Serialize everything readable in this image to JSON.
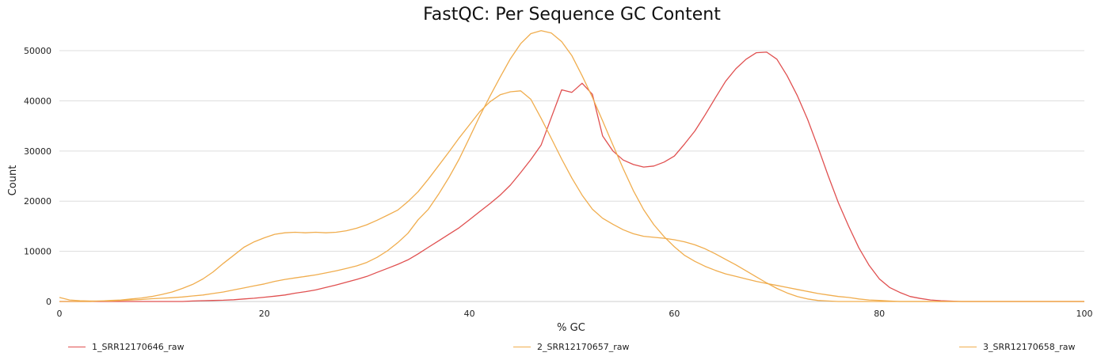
{
  "chart_data": {
    "type": "line",
    "title": "FastQC: Per Sequence GC Content",
    "xlabel": "% GC",
    "ylabel": "Count",
    "xlim": [
      0,
      100
    ],
    "ylim": [
      0,
      56000
    ],
    "x_ticks": [
      "0",
      "20",
      "40",
      "60",
      "80",
      "100"
    ],
    "y_ticks": [
      "0",
      "10000",
      "20000",
      "30000",
      "40000",
      "50000"
    ],
    "grid": "horizontal",
    "legend_position": "bottom",
    "x": [
      0,
      1,
      2,
      3,
      4,
      5,
      6,
      7,
      8,
      9,
      10,
      11,
      12,
      13,
      14,
      15,
      16,
      17,
      18,
      19,
      20,
      21,
      22,
      23,
      24,
      25,
      26,
      27,
      28,
      29,
      30,
      31,
      32,
      33,
      34,
      35,
      36,
      37,
      38,
      39,
      40,
      41,
      42,
      43,
      44,
      45,
      46,
      47,
      48,
      49,
      50,
      51,
      52,
      53,
      54,
      55,
      56,
      57,
      58,
      59,
      60,
      61,
      62,
      63,
      64,
      65,
      66,
      67,
      68,
      69,
      70,
      71,
      72,
      73,
      74,
      75,
      76,
      77,
      78,
      79,
      80,
      81,
      82,
      83,
      84,
      85,
      86,
      87,
      88,
      89,
      90,
      91,
      92,
      93,
      94,
      95,
      96,
      97,
      98,
      99,
      100
    ],
    "series": [
      {
        "name": "1_SRR12170646_raw",
        "color": "#e05050",
        "values": [
          0,
          0,
          0,
          0,
          0,
          0,
          0,
          0,
          0,
          0,
          0,
          0,
          0,
          100,
          150,
          200,
          250,
          350,
          500,
          650,
          850,
          1050,
          1300,
          1650,
          1950,
          2300,
          2800,
          3300,
          3850,
          4400,
          5000,
          5800,
          6600,
          7400,
          8300,
          9500,
          10800,
          12100,
          13400,
          14700,
          16300,
          17900,
          19500,
          21200,
          23200,
          25700,
          28300,
          31200,
          36700,
          42200,
          41700,
          43500,
          41300,
          33000,
          30000,
          28200,
          27300,
          26800,
          27000,
          27800,
          29000,
          31400,
          34000,
          37200,
          40600,
          43900,
          46400,
          48300,
          49600,
          49700,
          48300,
          45000,
          41000,
          36300,
          30800,
          25100,
          19700,
          15000,
          10700,
          7200,
          4500,
          2800,
          1800,
          1000,
          600,
          300,
          150,
          80,
          0,
          0,
          0,
          0,
          0,
          0,
          0,
          0,
          0,
          0,
          0,
          0,
          0
        ]
      },
      {
        "name": "2_SRR12170657_raw",
        "color": "#f0ad4e",
        "values": [
          800,
          300,
          150,
          100,
          100,
          100,
          200,
          300,
          400,
          550,
          650,
          750,
          900,
          1100,
          1300,
          1600,
          1900,
          2300,
          2700,
          3100,
          3500,
          4000,
          4400,
          4700,
          5000,
          5300,
          5700,
          6100,
          6600,
          7100,
          7800,
          8800,
          10100,
          11700,
          13600,
          16300,
          18400,
          21400,
          24700,
          28400,
          32600,
          36900,
          40900,
          44700,
          48400,
          51400,
          53400,
          54000,
          53500,
          51800,
          49000,
          45000,
          40700,
          36000,
          31200,
          26500,
          22100,
          18300,
          15300,
          12900,
          10900,
          9200,
          8000,
          7000,
          6200,
          5500,
          5000,
          4500,
          4000,
          3600,
          3200,
          2800,
          2400,
          2000,
          1600,
          1300,
          1000,
          800,
          500,
          300,
          200,
          100,
          0,
          0,
          0,
          0,
          0,
          0,
          0,
          0,
          0,
          0,
          0,
          0,
          0,
          0,
          0,
          0,
          0,
          0,
          0
        ]
      },
      {
        "name": "3_SRR12170658_raw",
        "color": "#f0ad4e",
        "values": [
          0,
          0,
          0,
          0,
          100,
          200,
          300,
          500,
          700,
          1000,
          1400,
          1900,
          2600,
          3400,
          4500,
          5900,
          7600,
          9200,
          10800,
          11900,
          12700,
          13400,
          13700,
          13800,
          13700,
          13800,
          13700,
          13800,
          14100,
          14600,
          15300,
          16200,
          17200,
          18200,
          19900,
          21900,
          24400,
          27100,
          29800,
          32600,
          35200,
          37800,
          39800,
          41200,
          41800,
          42000,
          40300,
          36500,
          32500,
          28400,
          24600,
          21200,
          18400,
          16600,
          15400,
          14300,
          13500,
          13000,
          12800,
          12600,
          12300,
          11900,
          11300,
          10500,
          9500,
          8400,
          7300,
          6100,
          4900,
          3700,
          2600,
          1700,
          1000,
          500,
          200,
          100,
          0,
          0,
          0,
          0,
          0,
          0,
          0,
          0,
          0,
          0,
          0,
          0,
          0,
          0,
          0,
          0,
          0,
          0,
          0,
          0,
          0,
          0,
          0,
          0,
          0
        ]
      }
    ]
  }
}
